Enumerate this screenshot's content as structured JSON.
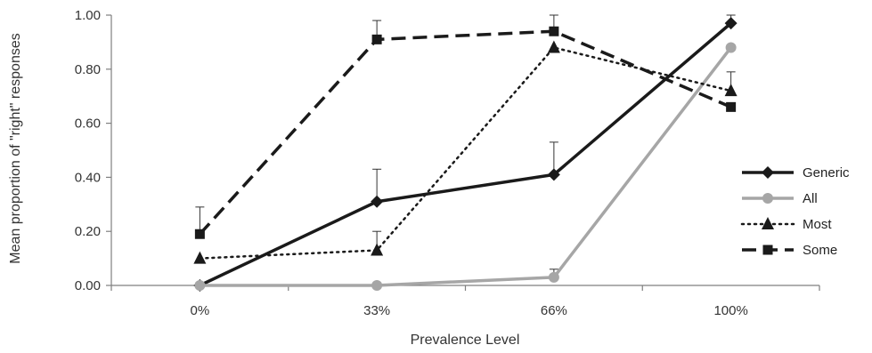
{
  "chart_data": {
    "type": "line",
    "categories": [
      "0%",
      "33%",
      "66%",
      "100%"
    ],
    "xlabel": "Prevalence Level",
    "ylabel": "Mean proportion of \"right\" responses",
    "ylim": [
      0,
      1
    ],
    "yticks": [
      "0.00",
      "0.20",
      "0.40",
      "0.60",
      "0.80",
      "1.00"
    ],
    "grid": false,
    "legend_position": "right",
    "series": [
      {
        "name": "Generic",
        "values": [
          0.0,
          0.31,
          0.41,
          0.97
        ],
        "error": [
          0.0,
          0.12,
          0.12,
          0.03
        ],
        "color": "#1a1a1a",
        "line_style": "solid",
        "marker": "diamond"
      },
      {
        "name": "All",
        "values": [
          0.0,
          0.0,
          0.03,
          0.88
        ],
        "error": [
          0.0,
          0.0,
          0.03,
          0.0
        ],
        "color": "#a6a6a6",
        "line_style": "solid",
        "marker": "circle"
      },
      {
        "name": "Most",
        "values": [
          0.1,
          0.13,
          0.88,
          0.72
        ],
        "error": [
          0.0,
          0.07,
          0.0,
          0.07
        ],
        "color": "#1a1a1a",
        "line_style": "dotted",
        "marker": "triangle"
      },
      {
        "name": "Some",
        "values": [
          0.19,
          0.91,
          0.94,
          0.66
        ],
        "error": [
          0.1,
          0.07,
          0.06,
          0.0
        ],
        "color": "#1a1a1a",
        "line_style": "dashed",
        "marker": "square"
      }
    ]
  }
}
